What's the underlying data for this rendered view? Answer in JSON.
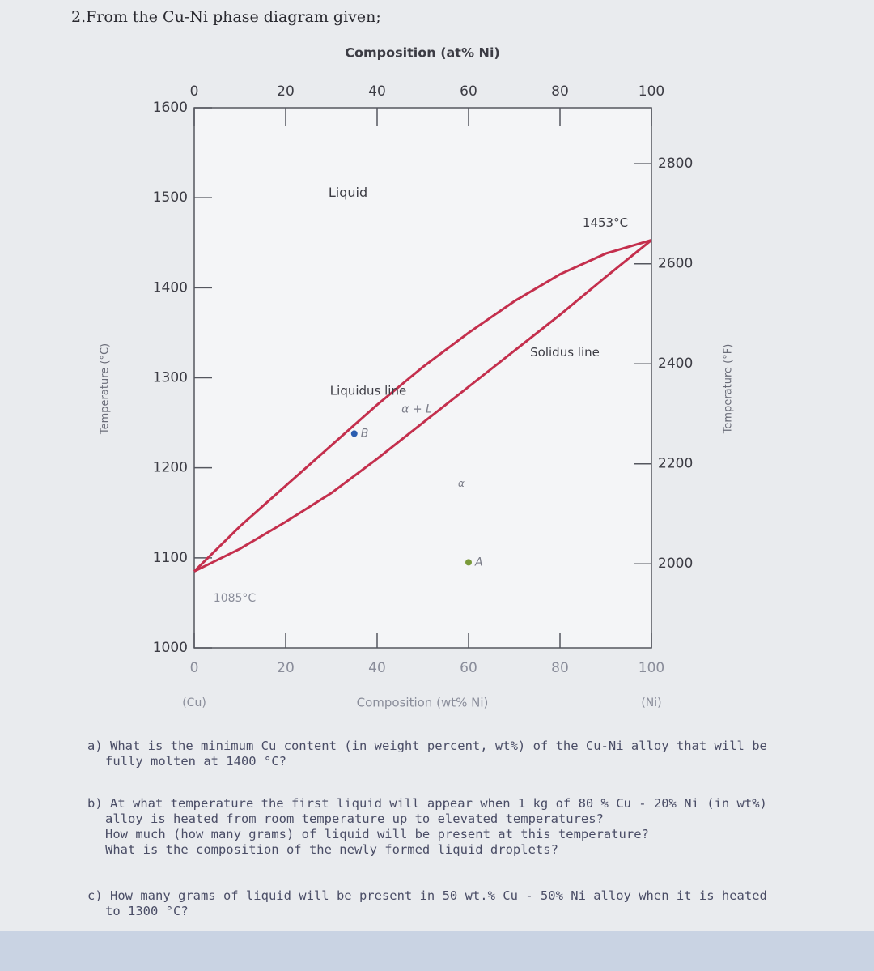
{
  "heading": "2.From the Cu-Ni phase diagram given;",
  "chart_data": {
    "type": "line",
    "x2label": "Composition (at% Ni)",
    "xlabel": "Composition (wt% Ni)",
    "ylabel": "Temperature (°C)",
    "y2label": "Temperature (°F)",
    "x": [
      0,
      10,
      20,
      30,
      40,
      50,
      60,
      70,
      80,
      90,
      100
    ],
    "series": [
      {
        "name": "Liquidus line",
        "color": "#c42f4d",
        "values": [
          1085,
          1135,
          1180,
          1225,
          1270,
          1312,
          1350,
          1385,
          1415,
          1438,
          1453
        ]
      },
      {
        "name": "Solidus line",
        "color": "#c42f4d",
        "values": [
          1085,
          1110,
          1140,
          1172,
          1210,
          1250,
          1290,
          1330,
          1370,
          1412,
          1453
        ]
      }
    ],
    "xlim": [
      0,
      100
    ],
    "xticks": [
      0,
      20,
      40,
      60,
      80,
      100
    ],
    "x2lim": [
      0,
      100
    ],
    "x2ticks": [
      0,
      20,
      40,
      60,
      80,
      100
    ],
    "ylim": [
      1000,
      1600
    ],
    "yticks": [
      1000,
      1100,
      1200,
      1300,
      1400,
      1500,
      1600
    ],
    "y2lim": [
      1832,
      2912
    ],
    "y2ticks": [
      2000,
      2200,
      2400,
      2600,
      2800
    ],
    "end_labels": [
      "(Cu)",
      "(Ni)"
    ],
    "annotations": [
      "Liquid",
      "1453°C",
      "1085°C",
      "α + L",
      "α"
    ],
    "points": [
      {
        "label": "A",
        "x": 60,
        "y": 1095,
        "color": "#7a9a3a"
      },
      {
        "label": "B",
        "x": 35,
        "y": 1238,
        "color": "#2a5db0"
      }
    ]
  },
  "questions": [
    [
      "a) What is the minimum Cu content (in weight percent, wt%) of the Cu-Ni alloy that will be fully molten at 1400 °C?"
    ],
    [
      "b) At what temperature the first liquid will appear when 1 kg of 80 % Cu - 20% Ni (in wt%) alloy is heated from room temperature up to elevated temperatures?",
      "How much (how many grams) of liquid will be present at this temperature?",
      "What is the composition of the newly formed liquid droplets?"
    ],
    [
      "c) How many grams of liquid will be present in 50 wt.% Cu - 50% Ni alloy when it is heated to 1300 °C?"
    ]
  ]
}
